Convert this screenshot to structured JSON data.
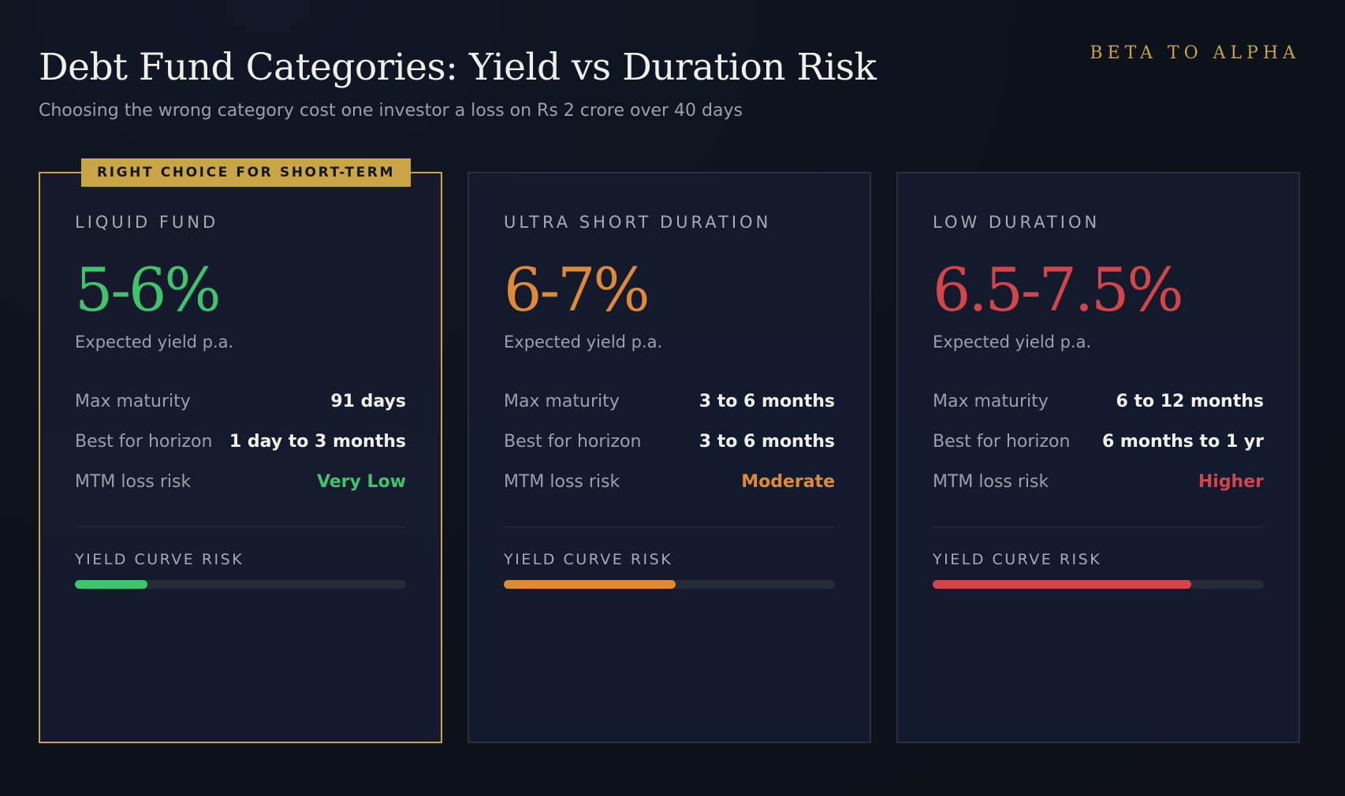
{
  "header": {
    "title": "Debt Fund Categories: Yield vs Duration Risk",
    "subtitle": "Choosing the wrong category cost one investor a loss on Rs 2 crore over 40 days",
    "brand": "BETA TO ALPHA"
  },
  "colors": {
    "gold": "#c9a548",
    "green": "#3ec46d",
    "orange": "#e08a35",
    "red": "#d2454b"
  },
  "row_labels": {
    "max_maturity": "Max maturity",
    "best_for": "Best for horizon",
    "mtm_risk": "MTM loss risk",
    "yield_caption": "Expected yield p.a.",
    "risk_bar": "YIELD CURVE RISK"
  },
  "cards": [
    {
      "badge": "RIGHT CHOICE FOR SHORT-TERM",
      "name": "LIQUID FUND",
      "yield": "5-6%",
      "max_maturity": "91 days",
      "best_for": "1 day to 3 months",
      "mtm_risk": "Very Low",
      "risk_level": 0.22,
      "accent": "#3ec46d"
    },
    {
      "name": "ULTRA SHORT DURATION",
      "yield": "6-7%",
      "max_maturity": "3 to 6 months",
      "best_for": "3 to 6 months",
      "mtm_risk": "Moderate",
      "risk_level": 0.52,
      "accent": "#e08a35"
    },
    {
      "name": "LOW DURATION",
      "yield": "6.5-7.5%",
      "max_maturity": "6 to 12 months",
      "best_for": "6 months to 1 yr",
      "mtm_risk": "Higher",
      "risk_level": 0.78,
      "accent": "#d2454b"
    }
  ]
}
